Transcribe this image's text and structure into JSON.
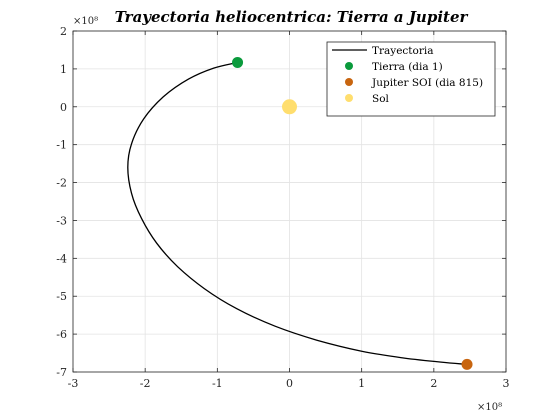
{
  "chart_data": {
    "type": "line",
    "title": "Trayectoria heliocentrica: Tierra a Jupiter",
    "xlabel": "",
    "ylabel": "",
    "x_exponent_label": "×10⁸",
    "y_exponent_label": "×10⁸",
    "xlim": [
      -3,
      3
    ],
    "ylim": [
      -7,
      2
    ],
    "xticks": [
      "-3",
      "-2",
      "-1",
      "0",
      "1",
      "2",
      "3"
    ],
    "yticks": [
      "2",
      "1",
      "0",
      "-1",
      "-2",
      "-3",
      "-4",
      "-5",
      "-6",
      "-7"
    ],
    "grid": true,
    "legend_position": "top-right",
    "series": [
      {
        "name": "Trayectoria",
        "kind": "line",
        "color": "#000000",
        "x": [
          -0.72,
          -1.05,
          -1.4,
          -1.75,
          -2.02,
          -2.19,
          -2.24,
          -2.19,
          -2.05,
          -1.84,
          -1.55,
          -1.18,
          -0.73,
          -0.2,
          0.38,
          1.0,
          1.58,
          2.1,
          2.46
        ],
        "y": [
          1.17,
          1.02,
          0.73,
          0.26,
          -0.32,
          -0.98,
          -1.6,
          -2.28,
          -2.95,
          -3.6,
          -4.22,
          -4.8,
          -5.33,
          -5.79,
          -6.16,
          -6.45,
          -6.63,
          -6.74,
          -6.8
        ]
      },
      {
        "name": "Tierra (dia 1)",
        "kind": "marker",
        "color": "#0A9A3C",
        "x": [
          -0.72
        ],
        "y": [
          1.17
        ]
      },
      {
        "name": "Jupiter SOI (dia 815)",
        "kind": "marker",
        "color": "#C8650F",
        "x": [
          2.46
        ],
        "y": [
          -6.8
        ]
      },
      {
        "name": "Sol",
        "kind": "marker",
        "color": "#FFDE6E",
        "x": [
          0.0
        ],
        "y": [
          0.0
        ]
      }
    ]
  }
}
